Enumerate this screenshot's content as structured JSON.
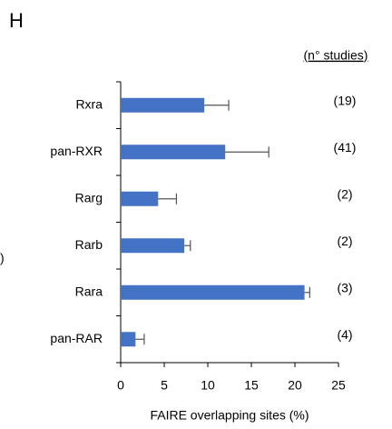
{
  "chart_data": {
    "type": "bar",
    "orientation": "horizontal",
    "panel_label": "H",
    "annotation_header": "(n° studies)",
    "edge_text": ")",
    "categories": [
      "Rxra",
      "pan-RXR",
      "Rarg",
      "Rarb",
      "Rara",
      "pan-RAR"
    ],
    "values": [
      9.6,
      12.0,
      4.3,
      7.3,
      21.1,
      1.7
    ],
    "errors": [
      2.8,
      5.0,
      2.1,
      0.7,
      0.6,
      1.0
    ],
    "annotations": [
      "(19)",
      "(41)",
      "(2)",
      "(2)",
      "(3)",
      "(4)"
    ],
    "color": "#4472c4",
    "xlabel": "FAIRE overlapping sites (%)",
    "xlim": [
      0,
      25
    ],
    "xticks": [
      0,
      5,
      10,
      15,
      20,
      25
    ]
  }
}
